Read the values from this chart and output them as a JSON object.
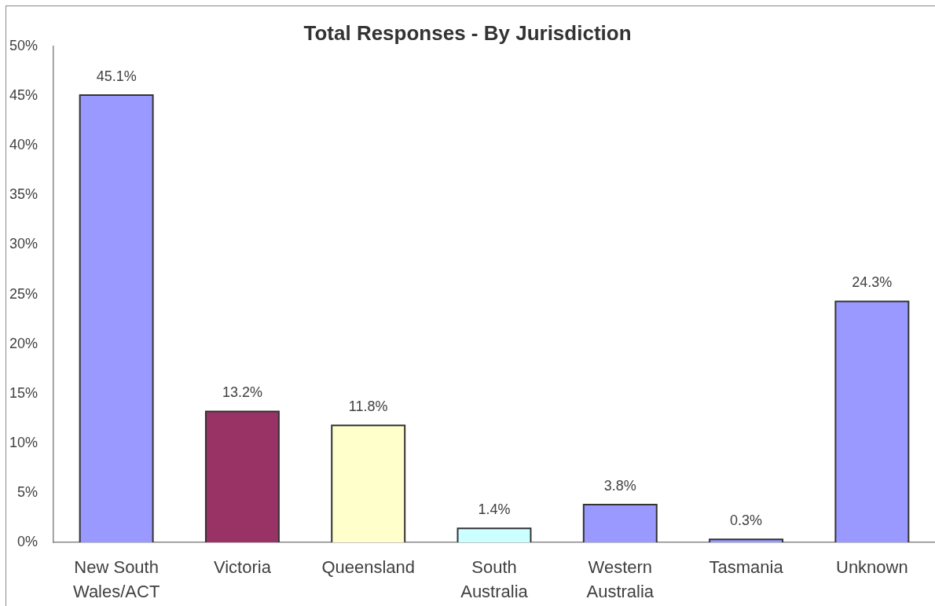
{
  "chart_data": {
    "type": "bar",
    "title": "Total Responses - By Jurisdiction",
    "categories": [
      "New South Wales/ACT",
      "Victoria",
      "Queensland",
      "South Australia",
      "Western Australia",
      "Tasmania",
      "Unknown"
    ],
    "values": [
      45.1,
      13.2,
      11.8,
      1.4,
      3.8,
      0.3,
      24.3
    ],
    "colors": [
      "#9999ff",
      "#993366",
      "#ffffcc",
      "#ccffff",
      "#9999ff",
      "#9999ff",
      "#9999ff"
    ],
    "value_labels": [
      "45.1%",
      "13.2%",
      "11.8%",
      "1.4%",
      "3.8%",
      "0.3%",
      "24.3%"
    ],
    "ylim": [
      0,
      50
    ],
    "yticks": [
      {
        "value": 0,
        "label": "0%"
      },
      {
        "value": 5,
        "label": "5%"
      },
      {
        "value": 10,
        "label": "10%"
      },
      {
        "value": 15,
        "label": "15%"
      },
      {
        "value": 20,
        "label": "20%"
      },
      {
        "value": 25,
        "label": "25%"
      },
      {
        "value": 30,
        "label": "30%"
      },
      {
        "value": 35,
        "label": "35%"
      },
      {
        "value": 40,
        "label": "40%"
      },
      {
        "value": 45,
        "label": "45%"
      },
      {
        "value": 50,
        "label": "50%"
      }
    ]
  }
}
